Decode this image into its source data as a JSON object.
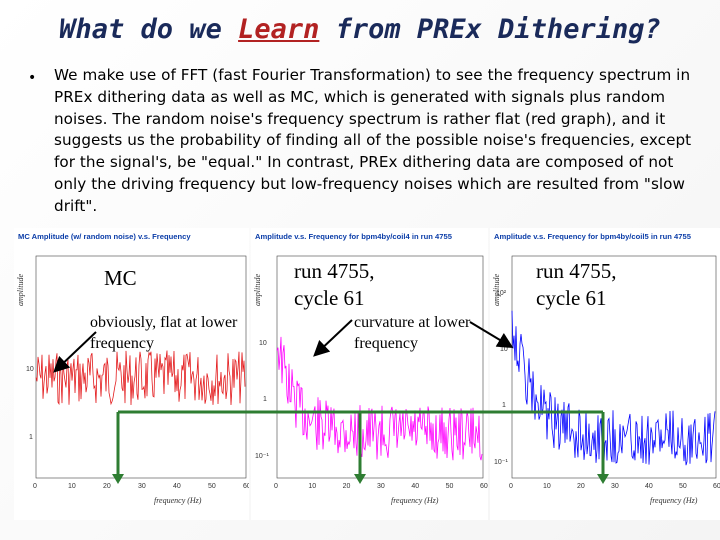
{
  "slide": {
    "title_pre": "What do we ",
    "title_highlight": "Learn",
    "title_post": " from PREx Dithering?",
    "bullet": "We make use of FFT (fast Fourier Transformation) to see the frequency spectrum in PREx dithering data as well as MC, which is generated with signals plus random noises. The random noise's frequency spectrum is rather flat (red graph), and it suggests us the probability of finding all of the possible noise's frequencies, except for the signal's, be \"equal.\" In contrast, PREx dithering data are composed of not only the driving frequency but low-frequency noises which are resulted from \"slow drift\"."
  },
  "panels": [
    {
      "title": "MC Amplitude (w/ random noise) v.s. Frequency",
      "ylabel": "amplitude",
      "xlabel": "frequency (Hz)",
      "color": "#e31a1c",
      "yticks": [
        "10",
        "1"
      ],
      "xticks": [
        "0",
        "10",
        "20",
        "30",
        "40",
        "50",
        "60"
      ],
      "annotation_main": "MC",
      "annotation_note": "obviously, flat at lower frequency"
    },
    {
      "title": "Amplitude v.s. Frequency for bpm4by/coil4 in run 4755",
      "ylabel": "amplitude",
      "xlabel": "frequency (Hz)",
      "color": "#ff00ff",
      "yticks": [
        "10",
        "1",
        "10⁻¹"
      ],
      "xticks": [
        "0",
        "10",
        "20",
        "30",
        "40",
        "50",
        "60"
      ],
      "annotation_main": "run 4755, cycle 61",
      "annotation_note": "curvature at lower frequency"
    },
    {
      "title": "Amplitude v.s. Frequency for bpm4by/coil5 in run 4755",
      "ylabel": "amplitude",
      "xlabel": "frequency (Hz)",
      "color": "#0000ff",
      "yticks": [
        "10²",
        "10",
        "1",
        "10⁻¹"
      ],
      "xticks": [
        "0",
        "10",
        "20",
        "30",
        "40",
        "50",
        "60"
      ],
      "annotation_main": "run 4755, cycle 61",
      "annotation_note": ""
    }
  ],
  "colors": {
    "title": "#1a2a5a",
    "highlight": "#b22222",
    "bracket": "#2e7d32"
  }
}
